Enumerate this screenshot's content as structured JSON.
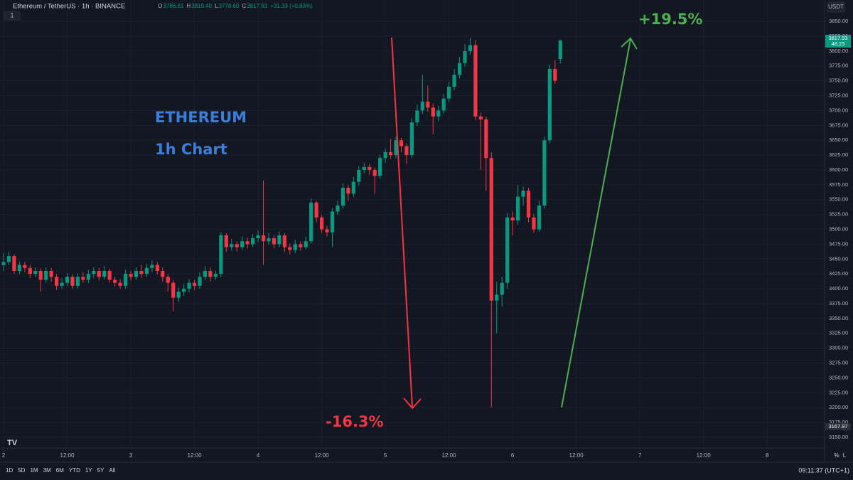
{
  "header": {
    "symbol": "Ethereum / TetherUS · 1h · BINANCE",
    "interval_badge": "1",
    "ohlc": [
      {
        "key": "O",
        "value": "3786.61"
      },
      {
        "key": "H",
        "value": "3819.40"
      },
      {
        "key": "L",
        "value": "3778.60"
      },
      {
        "key": "C",
        "value": "3817.93"
      }
    ],
    "change": "+31.33 (+0.83%)",
    "currency": "USDT"
  },
  "toolbar": {
    "ranges": [
      "1D",
      "5D",
      "1M",
      "3M",
      "6M",
      "YTD",
      "1Y",
      "5Y",
      "All"
    ],
    "clock": "09:11:37 (UTC+1)",
    "scale_buttons": [
      "%",
      "L"
    ]
  },
  "chart_data": {
    "type": "candlestick",
    "up_color": "#089981",
    "down_color": "#f23645",
    "grid": true,
    "annotations": [
      "ETHEREUM",
      "1h Chart",
      "+19.5%",
      "-16.3%"
    ],
    "x": [
      0,
      1,
      2,
      3,
      4,
      5,
      6,
      7,
      8,
      9,
      10,
      11,
      12,
      13,
      14,
      15,
      16,
      17,
      18,
      19,
      20,
      21,
      22,
      23,
      24,
      25,
      26,
      27,
      28,
      29,
      30,
      31,
      32,
      33,
      34,
      35,
      36,
      37,
      38,
      39,
      40,
      41,
      42,
      43,
      44,
      45,
      46,
      47,
      48,
      49,
      50,
      51,
      52,
      53,
      54,
      55,
      56,
      57,
      58,
      59,
      60,
      61,
      62,
      63,
      64,
      65,
      66,
      67,
      68,
      69,
      70,
      71,
      72,
      73,
      74,
      75,
      76,
      77,
      78,
      79,
      80,
      81,
      82,
      83,
      84,
      85,
      86,
      87,
      88,
      89,
      90,
      91,
      92,
      93,
      94,
      95,
      96,
      97,
      98,
      99,
      100,
      101,
      102,
      103,
      104,
      105
    ],
    "open": [
      3440,
      3445,
      3455,
      3430,
      3440,
      3435,
      3425,
      3430,
      3415,
      3430,
      3420,
      3405,
      3410,
      3420,
      3405,
      3420,
      3415,
      3425,
      3430,
      3420,
      3430,
      3415,
      3410,
      3405,
      3425,
      3420,
      3430,
      3425,
      3435,
      3440,
      3430,
      3420,
      3410,
      3385,
      3395,
      3400,
      3410,
      3405,
      3420,
      3430,
      3420,
      3425,
      3490,
      3470,
      3475,
      3470,
      3480,
      3475,
      3485,
      3490,
      3480,
      3485,
      3475,
      3490,
      3470,
      3465,
      3475,
      3470,
      3480,
      3545,
      3520,
      3500,
      3495,
      3530,
      3540,
      3570,
      3560,
      3580,
      3600,
      3605,
      3600,
      3590,
      3620,
      3630,
      3625,
      3650,
      3640,
      3625,
      3680,
      3700,
      3715,
      3705,
      3690,
      3700,
      3720,
      3740,
      3760,
      3780,
      3800,
      3810,
      3690,
      3685,
      3620,
      3380,
      3390,
      3410,
      3520,
      3515,
      3555,
      3565,
      3520,
      3500,
      3540,
      3650,
      3770,
      3786.61
    ],
    "high": [
      3460,
      3462,
      3458,
      3446,
      3445,
      3440,
      3436,
      3434,
      3436,
      3435,
      3425,
      3418,
      3426,
      3424,
      3426,
      3428,
      3432,
      3436,
      3435,
      3438,
      3434,
      3420,
      3416,
      3432,
      3430,
      3436,
      3440,
      3442,
      3448,
      3445,
      3436,
      3425,
      3415,
      3402,
      3408,
      3416,
      3415,
      3428,
      3438,
      3436,
      3430,
      3495,
      3494,
      3484,
      3480,
      3488,
      3486,
      3492,
      3498,
      3582,
      3494,
      3490,
      3496,
      3494,
      3476,
      3482,
      3480,
      3488,
      3552,
      3548,
      3524,
      3506,
      3536,
      3548,
      3578,
      3575,
      3588,
      3606,
      3612,
      3610,
      3604,
      3626,
      3636,
      3652,
      3656,
      3654,
      3645,
      3688,
      3710,
      3760,
      3742,
      3712,
      3708,
      3728,
      3748,
      3770,
      3790,
      3812,
      3822,
      3818,
      3696,
      3690,
      3630,
      3412,
      3420,
      3528,
      3530,
      3575,
      3572,
      3570,
      3526,
      3548,
      3656,
      3778,
      3785,
      3819.4
    ],
    "low": [
      3430,
      3440,
      3425,
      3424,
      3428,
      3418,
      3420,
      3395,
      3410,
      3412,
      3398,
      3400,
      3405,
      3400,
      3400,
      3410,
      3410,
      3418,
      3414,
      3415,
      3410,
      3404,
      3400,
      3400,
      3414,
      3415,
      3418,
      3420,
      3428,
      3424,
      3412,
      3395,
      3362,
      3378,
      3388,
      3394,
      3398,
      3400,
      3414,
      3412,
      3415,
      3420,
      3462,
      3464,
      3462,
      3465,
      3468,
      3470,
      3478,
      3440,
      3474,
      3468,
      3470,
      3462,
      3458,
      3460,
      3464,
      3466,
      3476,
      3512,
      3494,
      3488,
      3470,
      3524,
      3535,
      3548,
      3554,
      3574,
      3594,
      3592,
      3560,
      3585,
      3612,
      3618,
      3620,
      3630,
      3610,
      3620,
      3674,
      3694,
      3698,
      3660,
      3682,
      3694,
      3714,
      3734,
      3754,
      3774,
      3794,
      3684,
      3600,
      3565,
      3200,
      3325,
      3370,
      3400,
      3490,
      3508,
      3540,
      3512,
      3494,
      3496,
      3535,
      3645,
      3745,
      3778.6
    ],
    "close": [
      3445,
      3455,
      3430,
      3440,
      3435,
      3425,
      3430,
      3415,
      3430,
      3420,
      3405,
      3410,
      3420,
      3405,
      3420,
      3415,
      3425,
      3430,
      3420,
      3430,
      3415,
      3410,
      3405,
      3425,
      3420,
      3430,
      3425,
      3435,
      3440,
      3430,
      3420,
      3410,
      3385,
      3395,
      3400,
      3410,
      3405,
      3420,
      3430,
      3420,
      3425,
      3490,
      3470,
      3475,
      3470,
      3480,
      3475,
      3485,
      3490,
      3480,
      3485,
      3475,
      3490,
      3470,
      3465,
      3475,
      3470,
      3480,
      3545,
      3520,
      3500,
      3495,
      3530,
      3540,
      3570,
      3560,
      3580,
      3600,
      3605,
      3600,
      3590,
      3620,
      3630,
      3625,
      3650,
      3640,
      3625,
      3680,
      3700,
      3715,
      3705,
      3690,
      3700,
      3720,
      3740,
      3760,
      3780,
      3800,
      3810,
      3690,
      3685,
      3620,
      3380,
      3390,
      3410,
      3520,
      3515,
      3555,
      3565,
      3520,
      3500,
      3540,
      3650,
      3770,
      3750,
      3817.93
    ],
    "xlim": [
      -0.67,
      154.83
    ],
    "xticks": [
      {
        "value": 0,
        "label": "2"
      },
      {
        "value": 12,
        "label": "12:00"
      },
      {
        "value": 24,
        "label": "3"
      },
      {
        "value": 36,
        "label": "12:00"
      },
      {
        "value": 48,
        "label": "4"
      },
      {
        "value": 60,
        "label": "12:00"
      },
      {
        "value": 72,
        "label": "5"
      },
      {
        "value": 84,
        "label": "12:00"
      },
      {
        "value": 96,
        "label": "6"
      },
      {
        "value": 108,
        "label": "12:00"
      },
      {
        "value": 120,
        "label": "7"
      },
      {
        "value": 132,
        "label": "12:00"
      },
      {
        "value": 144,
        "label": "8"
      }
    ],
    "ylim": [
      3132,
      3886
    ],
    "yticks": [
      {
        "value": 3150,
        "label": "3150.00"
      },
      {
        "value": 3175,
        "label": "3175.00"
      },
      {
        "value": 3200,
        "label": "3200.00"
      },
      {
        "value": 3225,
        "label": "3225.00"
      },
      {
        "value": 3250,
        "label": "3250.00"
      },
      {
        "value": 3275,
        "label": "3275.00"
      },
      {
        "value": 3300,
        "label": "3300.00"
      },
      {
        "value": 3325,
        "label": "3325.00"
      },
      {
        "value": 3350,
        "label": "3350.00"
      },
      {
        "value": 3375,
        "label": "3375.00"
      },
      {
        "value": 3400,
        "label": "3400.00"
      },
      {
        "value": 3425,
        "label": "3425.00"
      },
      {
        "value": 3450,
        "label": "3450.00"
      },
      {
        "value": 3475,
        "label": "3475.00"
      },
      {
        "value": 3500,
        "label": "3500.00"
      },
      {
        "value": 3525,
        "label": "3525.00"
      },
      {
        "value": 3550,
        "label": "3550.00"
      },
      {
        "value": 3575,
        "label": "3575.00"
      },
      {
        "value": 3600,
        "label": "3600.00"
      },
      {
        "value": 3625,
        "label": "3625.00"
      },
      {
        "value": 3650,
        "label": "3650.00"
      },
      {
        "value": 3675,
        "label": "3675.00"
      },
      {
        "value": 3700,
        "label": "3700.00"
      },
      {
        "value": 3725,
        "label": "3725.00"
      },
      {
        "value": 3750,
        "label": "3750.00"
      },
      {
        "value": 3775,
        "label": "3775.00"
      },
      {
        "value": 3800,
        "label": "3800.00"
      },
      {
        "value": 3825,
        "label": "3825.00"
      },
      {
        "value": 3850,
        "label": "3850.00"
      }
    ],
    "price_label": {
      "value": 3817.93,
      "label": "3817.93",
      "countdown": "48:23"
    },
    "low_label": {
      "value": 3167.97,
      "label": "3167.97"
    }
  }
}
